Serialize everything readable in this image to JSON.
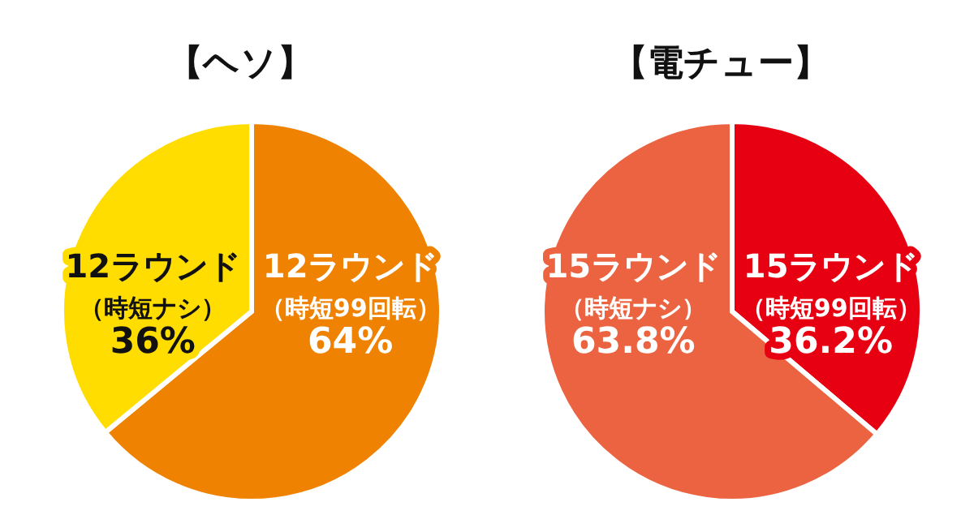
{
  "chart_data": [
    {
      "type": "pie",
      "title": "【ヘソ】",
      "categories": [
        "12ラウンド（時短99回転）",
        "12ラウンド（時短ナシ）"
      ],
      "values": [
        64,
        36
      ],
      "colors": [
        "#ef8200",
        "#ffdd00"
      ],
      "value_labels": [
        "64%",
        "36%"
      ]
    },
    {
      "type": "pie",
      "title": "【電チュー】",
      "categories": [
        "15ラウンド（時短99回転）",
        "15ラウンド（時短ナシ）"
      ],
      "values": [
        36.2,
        63.8
      ],
      "colors": [
        "#e60012",
        "#eb6340"
      ],
      "value_labels": [
        "36.2%",
        "63.8%"
      ]
    }
  ]
}
